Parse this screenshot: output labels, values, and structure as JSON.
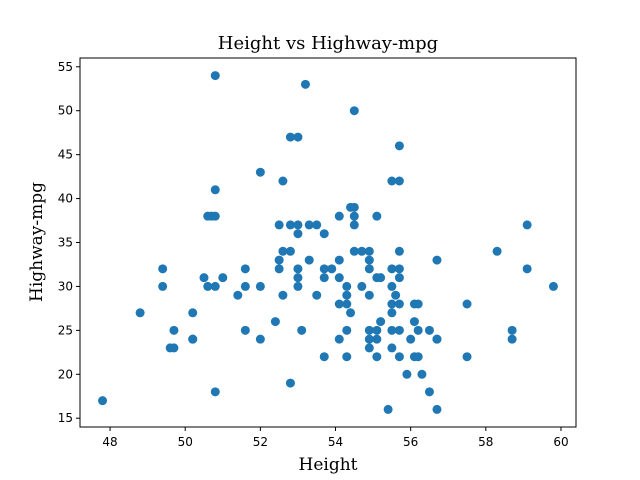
{
  "chart_data": {
    "type": "scatter",
    "title": "Height vs Highway-mpg",
    "xlabel": "Height",
    "ylabel": "Highway-mpg",
    "xlim": [
      47.2,
      60.4
    ],
    "ylim": [
      14.0,
      56.0
    ],
    "xticks": [
      48,
      50,
      52,
      54,
      56,
      58,
      60
    ],
    "yticks": [
      15,
      20,
      25,
      30,
      35,
      40,
      45,
      50,
      55
    ],
    "grid": false,
    "marker_color": "#1f77b4",
    "points": [
      [
        47.8,
        17
      ],
      [
        48.8,
        27
      ],
      [
        49.4,
        32
      ],
      [
        49.4,
        30
      ],
      [
        49.6,
        23
      ],
      [
        49.7,
        25
      ],
      [
        49.7,
        23
      ],
      [
        50.2,
        27
      ],
      [
        50.2,
        24
      ],
      [
        50.2,
        24
      ],
      [
        50.5,
        31
      ],
      [
        50.6,
        38
      ],
      [
        50.6,
        30
      ],
      [
        50.7,
        38
      ],
      [
        50.8,
        54
      ],
      [
        50.8,
        41
      ],
      [
        50.8,
        38
      ],
      [
        50.8,
        30
      ],
      [
        50.8,
        18
      ],
      [
        51.0,
        31
      ],
      [
        51.4,
        29
      ],
      [
        51.6,
        32
      ],
      [
        51.6,
        30
      ],
      [
        51.6,
        25
      ],
      [
        52.0,
        43
      ],
      [
        52.0,
        30
      ],
      [
        52.0,
        24
      ],
      [
        52.4,
        26
      ],
      [
        52.5,
        37
      ],
      [
        52.5,
        33
      ],
      [
        52.5,
        32
      ],
      [
        52.6,
        42
      ],
      [
        52.6,
        34
      ],
      [
        52.6,
        29
      ],
      [
        52.8,
        47
      ],
      [
        52.8,
        37
      ],
      [
        52.8,
        34
      ],
      [
        52.8,
        19
      ],
      [
        53.0,
        47
      ],
      [
        53.0,
        37
      ],
      [
        53.0,
        36
      ],
      [
        53.0,
        32
      ],
      [
        53.0,
        31
      ],
      [
        53.0,
        30
      ],
      [
        53.1,
        25
      ],
      [
        53.2,
        53
      ],
      [
        53.3,
        37
      ],
      [
        53.3,
        33
      ],
      [
        53.5,
        37
      ],
      [
        53.5,
        29
      ],
      [
        53.7,
        36
      ],
      [
        53.7,
        32
      ],
      [
        53.7,
        31
      ],
      [
        53.7,
        22
      ],
      [
        53.9,
        32
      ],
      [
        54.1,
        38
      ],
      [
        54.1,
        33
      ],
      [
        54.1,
        31
      ],
      [
        54.1,
        28
      ],
      [
        54.1,
        24
      ],
      [
        54.3,
        30
      ],
      [
        54.3,
        29
      ],
      [
        54.3,
        28
      ],
      [
        54.3,
        25
      ],
      [
        54.3,
        22
      ],
      [
        54.4,
        39
      ],
      [
        54.4,
        27
      ],
      [
        54.5,
        50
      ],
      [
        54.5,
        39
      ],
      [
        54.5,
        38
      ],
      [
        54.5,
        37
      ],
      [
        54.5,
        34
      ],
      [
        54.7,
        34
      ],
      [
        54.7,
        30
      ],
      [
        54.9,
        34
      ],
      [
        54.9,
        33
      ],
      [
        54.9,
        32
      ],
      [
        54.9,
        29
      ],
      [
        54.9,
        25
      ],
      [
        54.9,
        24
      ],
      [
        54.9,
        23
      ],
      [
        55.1,
        38
      ],
      [
        55.1,
        31
      ],
      [
        55.1,
        25
      ],
      [
        55.1,
        24
      ],
      [
        55.1,
        22
      ],
      [
        55.2,
        31
      ],
      [
        55.2,
        26
      ],
      [
        55.4,
        16
      ],
      [
        55.5,
        42
      ],
      [
        55.5,
        32
      ],
      [
        55.5,
        30
      ],
      [
        55.5,
        28
      ],
      [
        55.5,
        27
      ],
      [
        55.5,
        25
      ],
      [
        55.5,
        23
      ],
      [
        55.6,
        29
      ],
      [
        55.7,
        46
      ],
      [
        55.7,
        42
      ],
      [
        55.7,
        34
      ],
      [
        55.7,
        32
      ],
      [
        55.7,
        31
      ],
      [
        55.7,
        28
      ],
      [
        55.7,
        25
      ],
      [
        55.7,
        22
      ],
      [
        55.9,
        20
      ],
      [
        56.0,
        24
      ],
      [
        56.1,
        28
      ],
      [
        56.1,
        26
      ],
      [
        56.1,
        22
      ],
      [
        56.2,
        28
      ],
      [
        56.2,
        25
      ],
      [
        56.2,
        22
      ],
      [
        56.3,
        20
      ],
      [
        56.5,
        25
      ],
      [
        56.5,
        18
      ],
      [
        56.7,
        33
      ],
      [
        56.7,
        24
      ],
      [
        56.7,
        24
      ],
      [
        56.7,
        16
      ],
      [
        57.5,
        28
      ],
      [
        57.5,
        22
      ],
      [
        58.3,
        34
      ],
      [
        58.7,
        25
      ],
      [
        58.7,
        24
      ],
      [
        59.1,
        37
      ],
      [
        59.1,
        32
      ],
      [
        59.8,
        30
      ]
    ]
  }
}
